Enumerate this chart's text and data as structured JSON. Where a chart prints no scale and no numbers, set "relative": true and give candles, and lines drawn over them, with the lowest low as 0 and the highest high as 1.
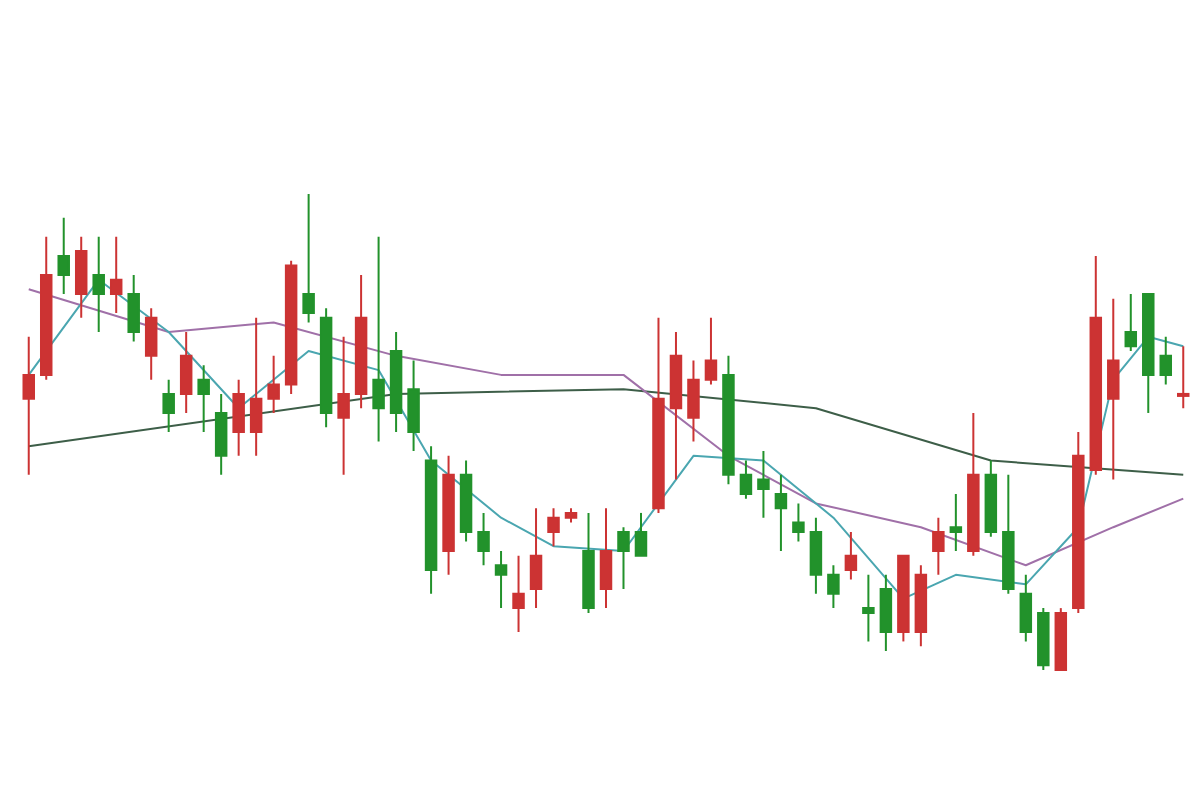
{
  "chart_data": {
    "type": "candlestick",
    "relative": true,
    "categories": [
      null,
      null,
      null,
      null,
      null,
      null,
      null,
      null,
      null,
      null,
      null,
      null,
      null,
      null,
      null,
      null,
      null,
      null,
      null,
      null,
      null,
      null,
      null,
      null,
      null,
      null,
      null,
      null,
      null,
      null,
      null,
      null,
      null,
      null,
      null,
      null,
      null,
      null,
      null,
      null,
      null,
      null,
      null,
      null,
      null,
      null,
      null,
      null,
      null,
      null,
      null,
      null,
      null,
      null,
      null,
      null,
      null,
      null,
      null,
      null,
      null,
      null,
      null,
      null,
      null,
      null,
      null
    ],
    "ohlc": [
      [
        0.57,
        0.7,
        0.41,
        0.62
      ],
      [
        0.62,
        0.91,
        0.61,
        0.83
      ],
      [
        0.87,
        0.95,
        0.79,
        0.83
      ],
      [
        0.79,
        0.91,
        0.74,
        0.88
      ],
      [
        0.83,
        0.91,
        0.71,
        0.79
      ],
      [
        0.79,
        0.91,
        0.75,
        0.82
      ],
      [
        0.79,
        0.83,
        0.69,
        0.71
      ],
      [
        0.66,
        0.76,
        0.61,
        0.74
      ],
      [
        0.58,
        0.61,
        0.5,
        0.54
      ],
      [
        0.58,
        0.71,
        0.54,
        0.66
      ],
      [
        0.61,
        0.64,
        0.5,
        0.58
      ],
      [
        0.54,
        0.58,
        0.41,
        0.45
      ],
      [
        0.5,
        0.61,
        0.45,
        0.58
      ],
      [
        0.5,
        0.74,
        0.45,
        0.57
      ],
      [
        0.57,
        0.66,
        0.54,
        0.6
      ],
      [
        0.6,
        0.86,
        0.58,
        0.85
      ],
      [
        0.79,
        1,
        0.73,
        0.75
      ],
      [
        0.74,
        0.76,
        0.51,
        0.54
      ],
      [
        0.53,
        0.7,
        0.41,
        0.58
      ],
      [
        0.58,
        0.83,
        0.55,
        0.74
      ],
      [
        0.61,
        0.91,
        0.48,
        0.55
      ],
      [
        0.67,
        0.71,
        0.5,
        0.54
      ],
      [
        0.59,
        0.65,
        0.46,
        0.5
      ],
      [
        0.44,
        0.47,
        0.16,
        0.21
      ],
      [
        0.25,
        0.45,
        0.2,
        0.41
      ],
      [
        0.41,
        0.44,
        0.27,
        0.29
      ],
      [
        0.29,
        0.33,
        0.22,
        0.25
      ],
      [
        0.22,
        0.25,
        0.13,
        0.2
      ],
      [
        0.13,
        0.24,
        0.08,
        0.16
      ],
      [
        0.17,
        0.34,
        0.13,
        0.24
      ],
      [
        0.29,
        0.34,
        0.26,
        0.32
      ],
      [
        0.32,
        0.34,
        0.31,
        0.33
      ],
      [
        0.25,
        0.33,
        0.12,
        0.13
      ],
      [
        0.17,
        0.34,
        0.13,
        0.25
      ],
      [
        0.29,
        0.3,
        0.17,
        0.25
      ],
      [
        0.29,
        0.33,
        0.24,
        0.24
      ],
      [
        0.34,
        0.74,
        0.33,
        0.57
      ],
      [
        0.55,
        0.71,
        0.4,
        0.66
      ],
      [
        0.53,
        0.65,
        0.48,
        0.61
      ],
      [
        0.61,
        0.74,
        0.6,
        0.65
      ],
      [
        0.62,
        0.66,
        0.39,
        0.41
      ],
      [
        0.41,
        0.44,
        0.36,
        0.37
      ],
      [
        0.4,
        0.46,
        0.32,
        0.38
      ],
      [
        0.37,
        0.41,
        0.25,
        0.34
      ],
      [
        0.31,
        0.35,
        0.27,
        0.29
      ],
      [
        0.29,
        0.32,
        0.16,
        0.2
      ],
      [
        0.2,
        0.22,
        0.13,
        0.16
      ],
      [
        0.21,
        0.29,
        0.19,
        0.24
      ],
      [
        0.13,
        0.2,
        0.06,
        0.12
      ],
      [
        0.17,
        0.2,
        0.04,
        0.08
      ],
      [
        0.08,
        0.24,
        0.06,
        0.24
      ],
      [
        0.08,
        0.22,
        0.05,
        0.2
      ],
      [
        0.25,
        0.32,
        0.2,
        0.29
      ],
      [
        0.3,
        0.37,
        0.25,
        0.29
      ],
      [
        0.25,
        0.54,
        0.24,
        0.41
      ],
      [
        0.41,
        0.44,
        0.28,
        0.29
      ],
      [
        0.29,
        0.41,
        0.16,
        0.17
      ],
      [
        0.16,
        0.2,
        0.06,
        0.08
      ],
      [
        0.12,
        0.13,
        0,
        0.01
      ],
      [
        0,
        0.13,
        0,
        0.12
      ],
      [
        0.13,
        0.5,
        0.12,
        0.45
      ],
      [
        0.42,
        0.87,
        0.41,
        0.74
      ],
      [
        0.57,
        0.78,
        0.4,
        0.65
      ],
      [
        0.71,
        0.79,
        0.67,
        0.68
      ],
      [
        0.79,
        0.79,
        0.54,
        0.62
      ],
      [
        0.66,
        0.7,
        0.6,
        0.62
      ],
      [
        0.58,
        0.68,
        0.55,
        0.58
      ]
    ],
    "colors": [
      "#cc3333",
      "#cc3333",
      "#22922b",
      "#cc3333",
      "#22922b",
      "#cc3333",
      "#22922b",
      "#cc3333",
      "#22922b",
      "#cc3333",
      "#22922b",
      "#22922b",
      "#cc3333",
      "#cc3333",
      "#cc3333",
      "#cc3333",
      "#22922b",
      "#22922b",
      "#cc3333",
      "#cc3333",
      "#22922b",
      "#22922b",
      "#22922b",
      "#22922b",
      "#cc3333",
      "#22922b",
      "#22922b",
      "#22922b",
      "#cc3333",
      "#cc3333",
      "#cc3333",
      "#cc3333",
      "#22922b",
      "#cc3333",
      "#22922b",
      "#22922b",
      "#cc3333",
      "#cc3333",
      "#cc3333",
      "#cc3333",
      "#22922b",
      "#22922b",
      "#22922b",
      "#22922b",
      "#22922b",
      "#22922b",
      "#22922b",
      "#cc3333",
      "#22922b",
      "#22922b",
      "#cc3333",
      "#cc3333",
      "#cc3333",
      "#22922b",
      "#cc3333",
      "#22922b",
      "#22922b",
      "#22922b",
      "#22922b",
      "#cc3333",
      "#cc3333",
      "#cc3333",
      "#cc3333",
      "#22922b",
      "#22922b",
      "#22922b",
      "#cc3333"
    ],
    "series": [
      {
        "type": "line",
        "color": "#4aa6b0",
        "values": [
          0.62,
          null,
          null,
          null,
          0.82,
          null,
          null,
          null,
          0.71,
          null,
          null,
          null,
          0.55,
          null,
          null,
          null,
          0.67,
          null,
          null,
          null,
          0.63,
          null,
          null,
          0.44,
          null,
          null,
          null,
          0.32,
          null,
          null,
          0.26,
          null,
          null,
          null,
          0.25,
          null,
          null,
          null,
          0.45,
          null,
          null,
          null,
          0.44,
          null,
          null,
          null,
          0.32,
          null,
          null,
          null,
          0.15,
          null,
          null,
          0.2,
          null,
          null,
          null,
          0.18,
          null,
          null,
          0.3,
          null,
          0.61,
          null,
          0.7,
          null,
          0.68
        ]
      },
      {
        "type": "line",
        "color": "#a070a8",
        "values": [
          0.8,
          null,
          null,
          null,
          null,
          null,
          null,
          null,
          0.71,
          null,
          null,
          null,
          null,
          null,
          0.73,
          null,
          null,
          null,
          null,
          null,
          null,
          0.66,
          null,
          null,
          null,
          null,
          null,
          0.62,
          null,
          null,
          null,
          null,
          null,
          null,
          0.62,
          null,
          null,
          null,
          null,
          null,
          0.45,
          null,
          null,
          null,
          null,
          0.35,
          null,
          null,
          null,
          null,
          null,
          0.3,
          null,
          null,
          null,
          null,
          null,
          0.22,
          null,
          null,
          null,
          null,
          0.3,
          null,
          null,
          null,
          0.36
        ]
      },
      {
        "type": "line",
        "color": "#3d5e48",
        "values": [
          0.47,
          null,
          null,
          null,
          null,
          null,
          null,
          null,
          null,
          null,
          null,
          null,
          null,
          null,
          null,
          null,
          null,
          null,
          null,
          null,
          null,
          0.58,
          null,
          null,
          null,
          null,
          null,
          null,
          null,
          null,
          null,
          null,
          null,
          null,
          0.59,
          null,
          null,
          null,
          null,
          null,
          null,
          null,
          null,
          null,
          null,
          0.55,
          null,
          null,
          null,
          null,
          null,
          null,
          null,
          null,
          null,
          0.44,
          null,
          null,
          null,
          null,
          null,
          null,
          null,
          null,
          null,
          null,
          0.41
        ]
      }
    ]
  }
}
